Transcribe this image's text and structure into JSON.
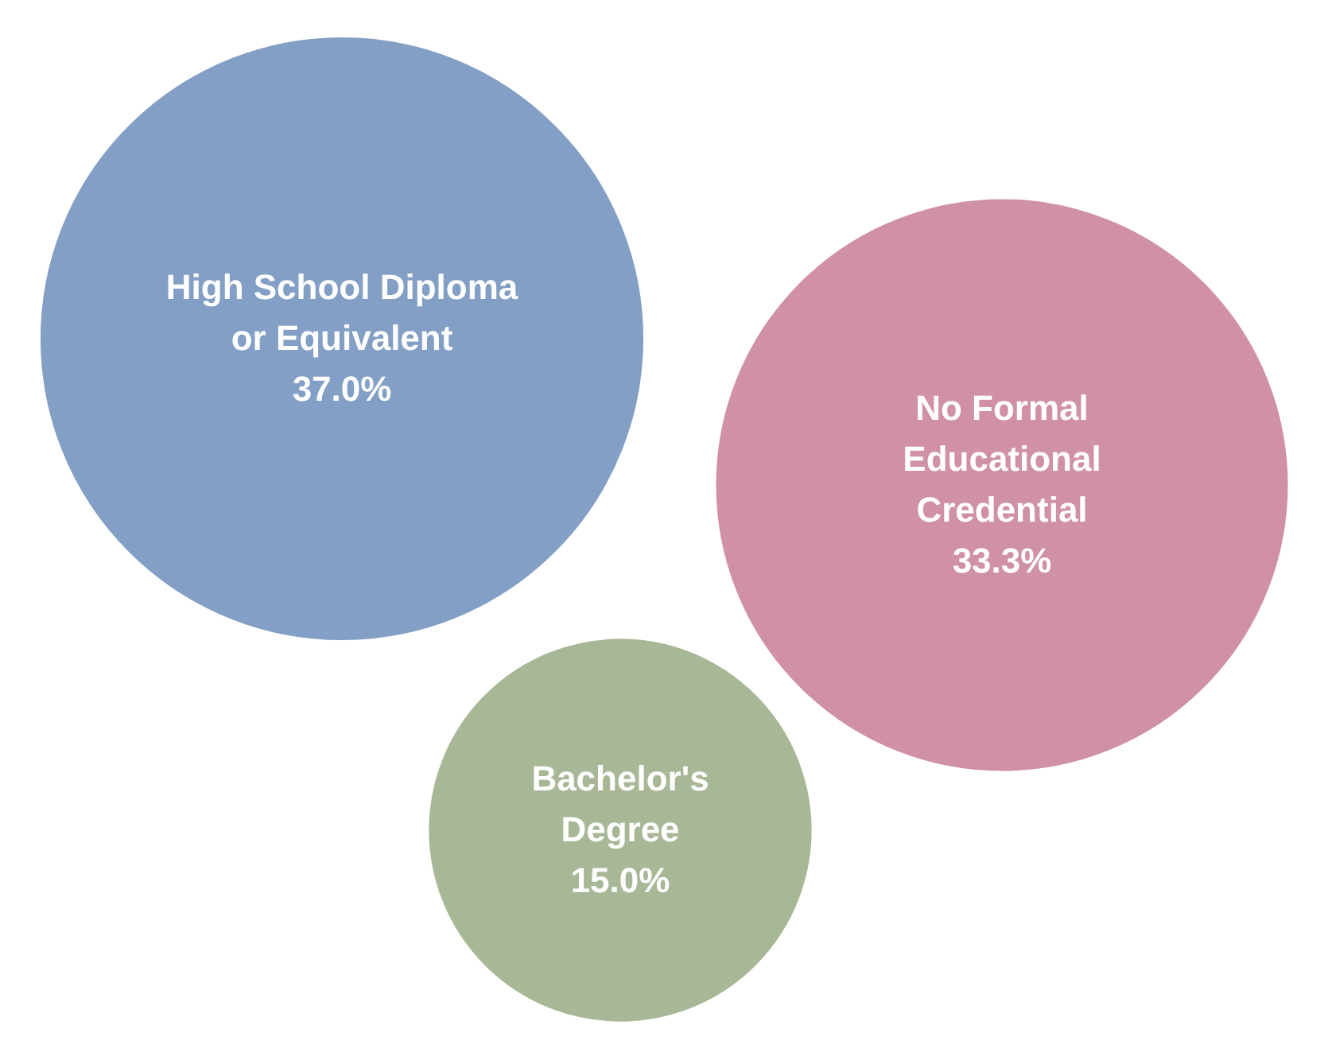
{
  "chart_data": {
    "type": "other",
    "categories": [
      "High School Diploma\nor Equivalent",
      "No Formal\nEducational\nCredential",
      "Bachelor's\nDegree"
    ],
    "values": [
      37.0,
      33.3,
      15.0
    ],
    "value_labels": [
      "37.0%",
      "33.3%",
      "15.0%"
    ],
    "colors": [
      "#839fc5",
      "#d091a5",
      "#a8b896"
    ]
  }
}
